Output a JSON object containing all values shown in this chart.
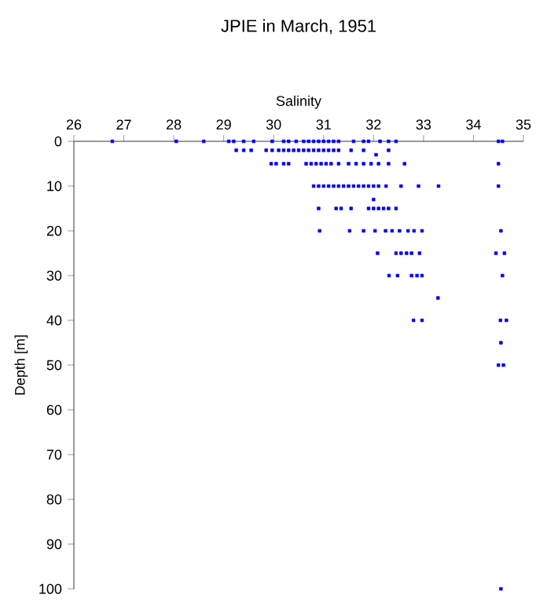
{
  "chart_data": {
    "type": "scatter",
    "title": "JPIE in March, 1951",
    "xlabel": "Salinity",
    "ylabel": "Depth [m]",
    "xlim": [
      26,
      35
    ],
    "xticks": [
      26,
      27,
      28,
      29,
      30,
      31,
      32,
      33,
      34,
      35
    ],
    "ylim": [
      100,
      0
    ],
    "yticks": [
      0,
      10,
      20,
      30,
      40,
      50,
      60,
      70,
      80,
      90,
      100
    ],
    "marker": "square",
    "series": [
      {
        "color": "#0000ff",
        "x": [
          26.77,
          28.05,
          28.6,
          29.1,
          29.2,
          29.4,
          29.6,
          29.97,
          30.2,
          30.3,
          30.45,
          30.6,
          30.7,
          30.8,
          30.9,
          31.0,
          31.1,
          31.2,
          31.3,
          31.6,
          31.8,
          31.9,
          32.13,
          32.3,
          32.45,
          34.5,
          34.58,
          29.25,
          29.4,
          29.55,
          29.85,
          29.97,
          30.1,
          30.2,
          30.3,
          30.4,
          30.5,
          30.6,
          30.7,
          30.8,
          30.9,
          31.0,
          31.1,
          31.2,
          31.3,
          31.55,
          31.8,
          32.3,
          32.05,
          29.95,
          30.05,
          30.2,
          30.3,
          30.65,
          30.75,
          30.85,
          30.95,
          31.05,
          31.15,
          31.3,
          31.5,
          31.65,
          31.8,
          31.95,
          32.1,
          32.3,
          32.62,
          34.5,
          30.8,
          30.9,
          31.0,
          31.1,
          31.2,
          31.3,
          31.4,
          31.5,
          31.6,
          31.7,
          31.8,
          31.9,
          32.0,
          32.1,
          32.25,
          32.55,
          32.9,
          33.3,
          34.5,
          32.0,
          30.9,
          31.25,
          31.35,
          31.55,
          31.9,
          32.0,
          32.1,
          32.2,
          32.3,
          32.45,
          30.92,
          31.52,
          31.8,
          32.03,
          32.24,
          32.37,
          32.52,
          32.69,
          32.81,
          32.97,
          34.55,
          32.08,
          32.45,
          32.55,
          32.66,
          32.76,
          32.92,
          34.45,
          34.62,
          32.31,
          32.48,
          32.76,
          32.87,
          32.97,
          34.58,
          33.29,
          32.8,
          32.97,
          34.54,
          34.66,
          34.55,
          34.5,
          34.6,
          34.55
        ],
        "values": [
          0,
          0,
          0,
          0,
          0,
          0,
          0,
          0,
          0,
          0,
          0,
          0,
          0,
          0,
          0,
          0,
          0,
          0,
          0,
          0,
          0,
          0,
          0,
          0,
          0,
          0,
          0,
          2,
          2,
          2,
          2,
          2,
          2,
          2,
          2,
          2,
          2,
          2,
          2,
          2,
          2,
          2,
          2,
          2,
          2,
          2,
          2,
          2,
          3,
          5,
          5,
          5,
          5,
          5,
          5,
          5,
          5,
          5,
          5,
          5,
          5,
          5,
          5,
          5,
          5,
          5,
          5,
          5,
          10,
          10,
          10,
          10,
          10,
          10,
          10,
          10,
          10,
          10,
          10,
          10,
          10,
          10,
          10,
          10,
          10,
          10,
          10,
          13,
          15,
          15,
          15,
          15,
          15,
          15,
          15,
          15,
          15,
          15,
          20,
          20,
          20,
          20,
          20,
          20,
          20,
          20,
          20,
          20,
          20,
          25,
          25,
          25,
          25,
          25,
          25,
          25,
          25,
          30,
          30,
          30,
          30,
          30,
          30,
          35,
          40,
          40,
          40,
          40,
          45,
          50,
          50,
          100
        ]
      }
    ]
  }
}
